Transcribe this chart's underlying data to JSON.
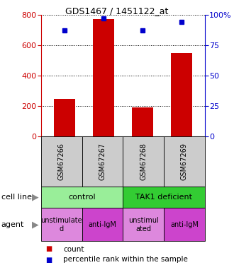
{
  "title": "GDS1467 / 1451122_at",
  "samples": [
    "GSM67266",
    "GSM67267",
    "GSM67268",
    "GSM67269"
  ],
  "counts": [
    245,
    770,
    190,
    550
  ],
  "percentiles": [
    87,
    97,
    87,
    94
  ],
  "ylim_left": [
    0,
    800
  ],
  "ylim_right": [
    0,
    100
  ],
  "yticks_left": [
    0,
    200,
    400,
    600,
    800
  ],
  "yticks_right": [
    0,
    25,
    50,
    75,
    100
  ],
  "bar_color": "#cc0000",
  "dot_color": "#0000cc",
  "cell_lines": [
    {
      "label": "control",
      "span": [
        0,
        2
      ],
      "color": "#99ee99"
    },
    {
      "label": "TAK1 deficient",
      "span": [
        2,
        4
      ],
      "color": "#33cc33"
    }
  ],
  "agents": [
    {
      "label": "unstimulate\nd",
      "color": "#dd88dd"
    },
    {
      "label": "anti-IgM",
      "color": "#cc44cc"
    },
    {
      "label": "unstimul\nated",
      "color": "#dd88dd"
    },
    {
      "label": "anti-IgM",
      "color": "#cc44cc"
    }
  ],
  "sample_box_color": "#cccccc",
  "left_label_color": "#cc0000",
  "right_label_color": "#0000cc",
  "cell_line_label": "cell line",
  "agent_label": "agent",
  "legend_count_color": "#cc0000",
  "legend_dot_color": "#0000cc"
}
